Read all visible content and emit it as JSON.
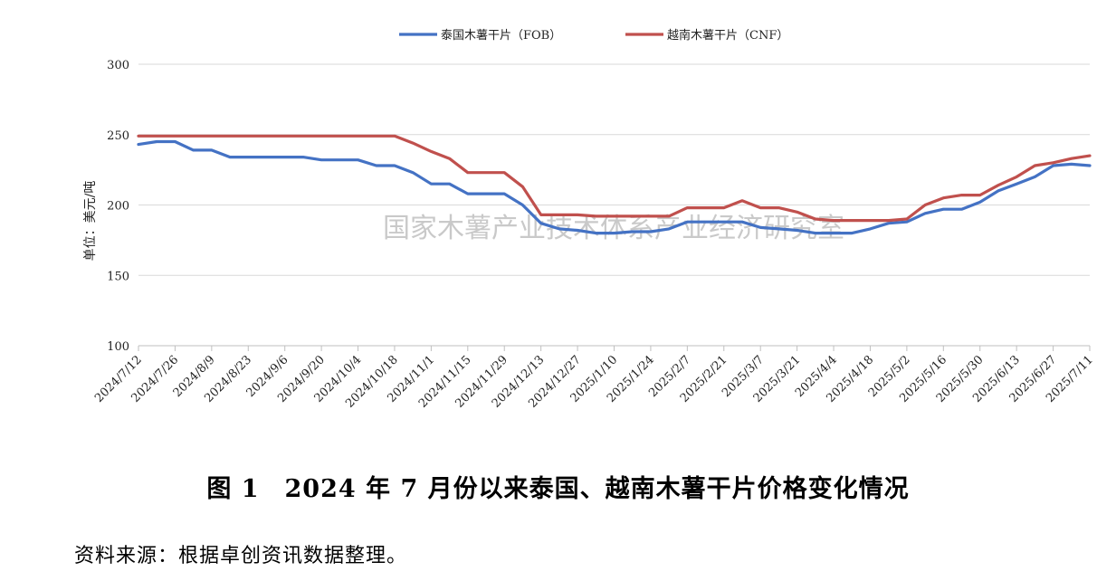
{
  "chart_data": {
    "type": "line",
    "title": "",
    "ylabel": "单位：美元/吨",
    "ylim": [
      100,
      300
    ],
    "yticks": [
      100,
      150,
      200,
      250,
      300
    ],
    "grid": true,
    "legend_position": "top",
    "watermark": "国家木薯产业技术体系产业经济研究室",
    "x": [
      "2024/7/12",
      "2024/7/19",
      "2024/7/26",
      "2024/8/2",
      "2024/8/9",
      "2024/8/16",
      "2024/8/23",
      "2024/8/30",
      "2024/9/6",
      "2024/9/13",
      "2024/9/20",
      "2024/9/27",
      "2024/10/4",
      "2024/10/11",
      "2024/10/18",
      "2024/10/25",
      "2024/11/1",
      "2024/11/8",
      "2024/11/15",
      "2024/11/22",
      "2024/11/29",
      "2024/12/6",
      "2024/12/13",
      "2024/12/20",
      "2024/12/27",
      "2025/1/3",
      "2025/1/10",
      "2025/1/17",
      "2025/1/24",
      "2025/1/31",
      "2025/2/7",
      "2025/2/14",
      "2025/2/21",
      "2025/2/28",
      "2025/3/7",
      "2025/3/14",
      "2025/3/21",
      "2025/3/28",
      "2025/4/4",
      "2025/4/11",
      "2025/4/18",
      "2025/4/25",
      "2025/5/2",
      "2025/5/9",
      "2025/5/16",
      "2025/5/23",
      "2025/5/30",
      "2025/6/6",
      "2025/6/13",
      "2025/6/20",
      "2025/6/27",
      "2025/7/4",
      "2025/7/11"
    ],
    "xticks": [
      "2024/7/12",
      "2024/7/26",
      "2024/8/9",
      "2024/8/23",
      "2024/9/6",
      "2024/9/20",
      "2024/10/4",
      "2024/10/18",
      "2024/11/1",
      "2024/11/15",
      "2024/11/29",
      "2024/12/13",
      "2024/12/27",
      "2025/1/10",
      "2025/1/24",
      "2025/2/7",
      "2025/2/21",
      "2025/3/7",
      "2025/3/21",
      "2025/4/4",
      "2025/4/18",
      "2025/5/2",
      "2025/5/16",
      "2025/5/30",
      "2025/6/13",
      "2025/6/27",
      "2025/7/11"
    ],
    "series": [
      {
        "name": "泰国木薯干片（FOB）",
        "color": "#4472c4",
        "values": [
          243,
          245,
          245,
          239,
          239,
          234,
          234,
          234,
          234,
          234,
          232,
          232,
          232,
          228,
          228,
          223,
          215,
          215,
          208,
          208,
          208,
          200,
          187,
          183,
          182,
          180,
          180,
          181,
          181,
          183,
          188,
          188,
          188,
          188,
          184,
          183,
          182,
          180,
          180,
          180,
          183,
          187,
          188,
          194,
          197,
          197,
          202,
          210,
          215,
          220,
          228,
          229,
          228
        ]
      },
      {
        "name": "越南木薯干片（CNF）",
        "color": "#c0504d",
        "values": [
          249,
          249,
          249,
          249,
          249,
          249,
          249,
          249,
          249,
          249,
          249,
          249,
          249,
          249,
          249,
          244,
          238,
          233,
          223,
          223,
          223,
          213,
          193,
          193,
          193,
          192,
          192,
          192,
          192,
          192,
          198,
          198,
          198,
          203,
          198,
          198,
          195,
          190,
          189,
          189,
          189,
          189,
          190,
          200,
          205,
          207,
          207,
          214,
          220,
          228,
          230,
          233,
          235
        ]
      }
    ]
  },
  "caption": "图 1　2024 年 7 月份以来泰国、越南木薯干片价格变化情况",
  "source": "资料来源：根据卓创资讯数据整理。"
}
